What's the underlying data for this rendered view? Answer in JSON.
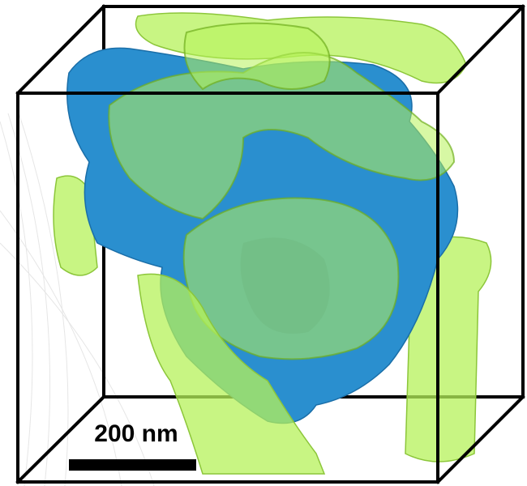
{
  "scale_bar": {
    "label": "200 nm"
  }
}
